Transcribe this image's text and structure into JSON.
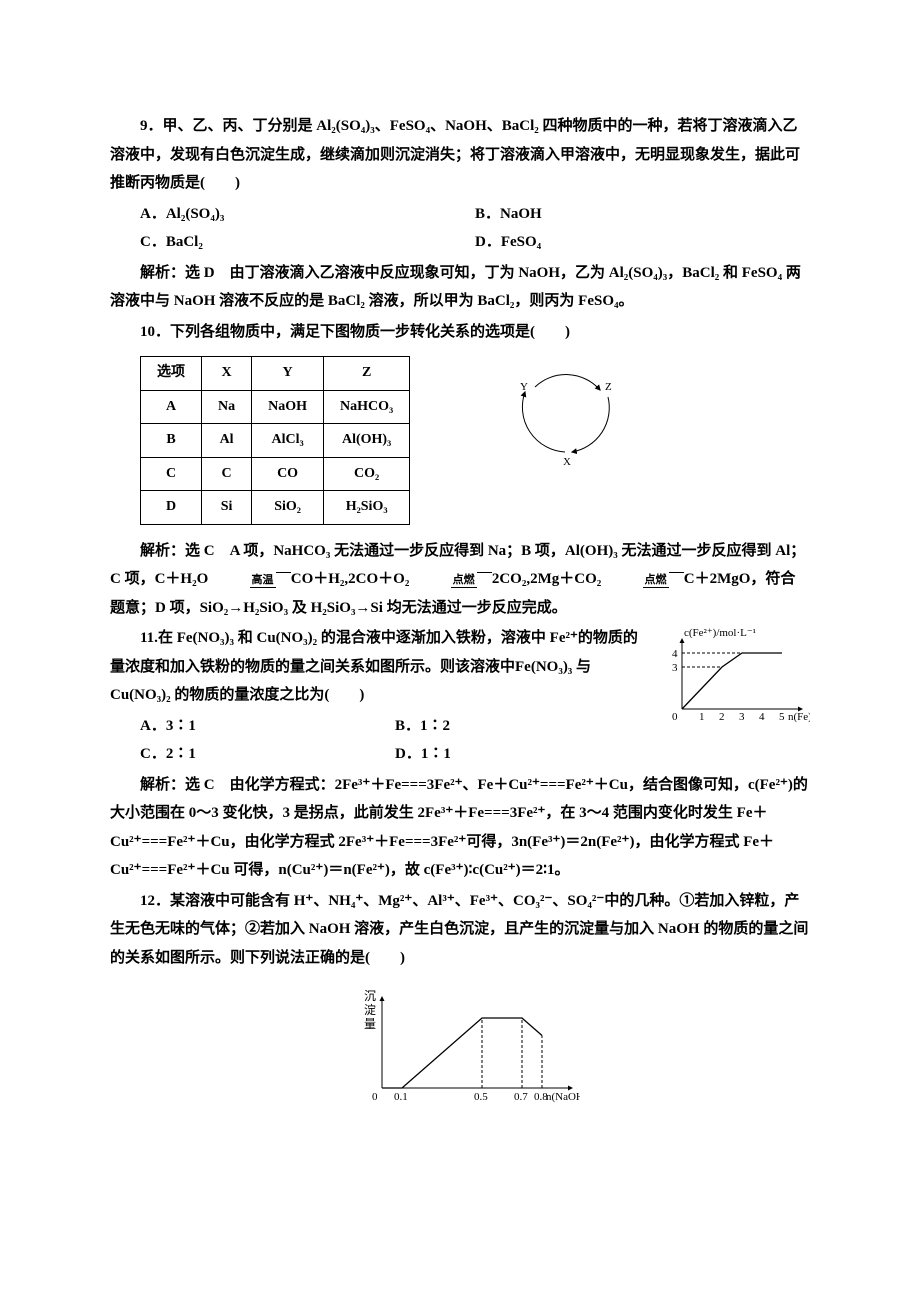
{
  "q9": {
    "stem_prefix": "9．",
    "stem": "甲、乙、丙、丁分别是 Al₂(SO₄)₃、FeSO₄、NaOH、BaCl₂ 四种物质中的一种，若将丁溶液滴入乙溶液中，发现有白色沉淀生成，继续滴加则沉淀消失；将丁溶液滴入甲溶液中，无明显现象发生，据此可推断丙物质是(　　)",
    "A": "A．Al₂(SO₄)₃",
    "B": "B．NaOH",
    "C": "C．BaCl₂",
    "D": "D．FeSO₄",
    "ans": "解析：选 D　由丁溶液滴入乙溶液中反应现象可知，丁为 NaOH，乙为 Al₂(SO₄)₃，BaCl₂ 和 FeSO₄ 两溶液中与 NaOH 溶液不反应的是 BaCl₂ 溶液，所以甲为 BaCl₂，则丙为 FeSO₄。"
  },
  "q10": {
    "stem_prefix": "10．",
    "stem": "下列各组物质中，满足下图物质一步转化关系的选项是(　　)",
    "table": {
      "headers": [
        "选项",
        "X",
        "Y",
        "Z"
      ],
      "rows": [
        [
          "A",
          "Na",
          "NaOH",
          "NaHCO₃"
        ],
        [
          "B",
          "Al",
          "AlCl₃",
          "Al(OH)₃"
        ],
        [
          "C",
          "C",
          "CO",
          "CO₂"
        ],
        [
          "D",
          "Si",
          "SiO₂",
          "H₂SiO₃"
        ]
      ]
    },
    "cycle": {
      "X": "X",
      "Y": "Y",
      "Z": "Z"
    },
    "ans_lead": "解析：选 C　A 项，NaHCO₃ 无法通过一步反应得到 Na；B 项，Al(OH)₃ 无法通过一步反应得到 Al；C 项，C＋H₂O ",
    "cond1": "高温",
    "ans_mid1": " CO＋H₂,2CO＋O₂ ",
    "cond2": "点燃",
    "ans_mid2": " 2CO₂,2Mg＋CO₂ ",
    "cond3": "点燃",
    "ans_tail": " C＋2MgO，符合题意；D 项，SiO₂→H₂SiO₃ 及 H₂SiO₃→Si 均无法通过一步反应完成。"
  },
  "q11": {
    "stem_prefix": "11.",
    "stem": "在 Fe(NO₃)₃ 和 Cu(NO₃)₂ 的混合液中逐渐加入铁粉，溶液中 Fe²⁺的物质的量浓度和加入铁粉的物质的量之间关系如图所示。则该溶液中Fe(NO₃)₃ 与 Cu(NO₃)₂ 的物质的量浓度之比为(　　)",
    "A": "A．3∶1",
    "B": "B．1∶2",
    "C": "C．2∶1",
    "D": "D．1∶1",
    "chart": {
      "y_label": "c(Fe²⁺)/mol·L⁻¹",
      "x_label": "n(Fe)/mol",
      "x_ticks": [
        "1",
        "2",
        "3",
        "4",
        "5"
      ],
      "y_ticks": [
        "3",
        "4"
      ],
      "points": [
        [
          0,
          0
        ],
        [
          2,
          3
        ],
        [
          3,
          4
        ],
        [
          5,
          4
        ]
      ],
      "knee_dash_x": 2,
      "knee_dash_y": 3,
      "plateau_y": 4,
      "axis_color": "#000000",
      "line_color": "#000000",
      "dash_color": "#000000"
    },
    "ans": "解析：选 C　由化学方程式：2Fe³⁺＋Fe===3Fe²⁺、Fe＋Cu²⁺===Fe²⁺＋Cu，结合图像可知，c(Fe²⁺)的大小范围在 0～3 变化快，3 是拐点，此前发生 2Fe³⁺＋Fe===3Fe²⁺，在 3～4 范围内变化时发生 Fe＋Cu²⁺===Fe²⁺＋Cu，由化学方程式 2Fe³⁺＋Fe===3Fe²⁺可得，3n(Fe³⁺)＝2n(Fe²⁺)，由化学方程式 Fe＋Cu²⁺===Fe²⁺＋Cu 可得，n(Cu²⁺)＝n(Fe²⁺)，故 c(Fe³⁺)∶c(Cu²⁺)＝2∶1。"
  },
  "q12": {
    "stem_prefix": "12．",
    "stem": "某溶液中可能含有 H⁺、NH₄⁺、Mg²⁺、Al³⁺、Fe³⁺、CO₃²⁻、SO₄²⁻中的几种。①若加入锌粒，产生无色无味的气体；②若加入 NaOH 溶液，产生白色沉淀，且产生的沉淀量与加入 NaOH 的物质的量之间的关系如图所示。则下列说法正确的是(　　)",
    "chart": {
      "y_label_cn": "沉淀量",
      "x_label": "n(NaOH)/mol",
      "x_ticks": [
        "0.1",
        "0.5",
        "0.7",
        "0.8"
      ],
      "points": [
        [
          0,
          0
        ],
        [
          0.1,
          0
        ],
        [
          0.5,
          1
        ],
        [
          0.7,
          1
        ],
        [
          0.8,
          0.75
        ]
      ],
      "axis_color": "#000000",
      "line_color": "#000000",
      "dash_color": "#000000",
      "plateau_y": 1
    }
  }
}
